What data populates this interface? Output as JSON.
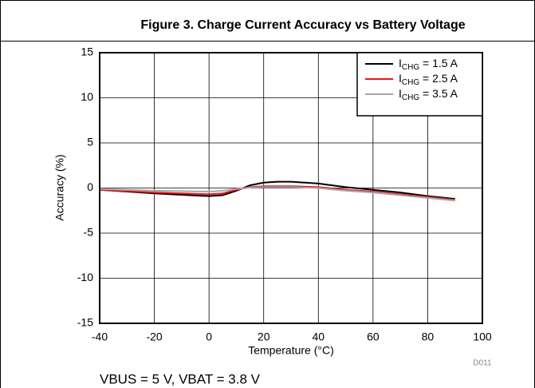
{
  "chart_data": {
    "type": "line",
    "title": "Figure 3. Charge Current Accuracy vs Battery Voltage",
    "x_label": "Temperature (°C)",
    "y_label": "Accuracy (%)",
    "code": "D011",
    "note": "VBUS = 5 V, VBAT = 3.8 V",
    "x": [
      -40,
      -20,
      0,
      5,
      10,
      15,
      20,
      25,
      30,
      40,
      50,
      60,
      70,
      80,
      90
    ],
    "series": [
      {
        "name": "ICHG = 1.5 A",
        "color": "#000000",
        "values": [
          -0.2,
          -0.6,
          -0.9,
          -0.8,
          -0.3,
          0.3,
          0.6,
          0.7,
          0.7,
          0.5,
          0.1,
          -0.2,
          -0.5,
          -0.9,
          -1.2
        ]
      },
      {
        "name": "ICHG = 2.5 A",
        "color": "#e8141c",
        "values": [
          -0.2,
          -0.5,
          -0.7,
          -0.6,
          -0.2,
          0.1,
          0.2,
          0.2,
          0.2,
          0.1,
          -0.2,
          -0.4,
          -0.7,
          -1.0,
          -1.3
        ]
      },
      {
        "name": "ICHG = 3.5 A",
        "color": "#a6a6a6",
        "values": [
          -0.1,
          -0.3,
          -0.4,
          -0.3,
          -0.1,
          0.05,
          0.1,
          0.1,
          0.1,
          0.0,
          -0.3,
          -0.5,
          -0.8,
          -1.1,
          -1.4
        ]
      }
    ],
    "xlim": [
      -40,
      100
    ],
    "xticks": [
      -40,
      -20,
      0,
      20,
      40,
      60,
      80,
      100
    ],
    "ylim": [
      -15,
      15
    ],
    "yticks": [
      -15,
      -10,
      -5,
      0,
      5,
      10,
      15
    ],
    "grid": true,
    "legend": "upper right"
  }
}
